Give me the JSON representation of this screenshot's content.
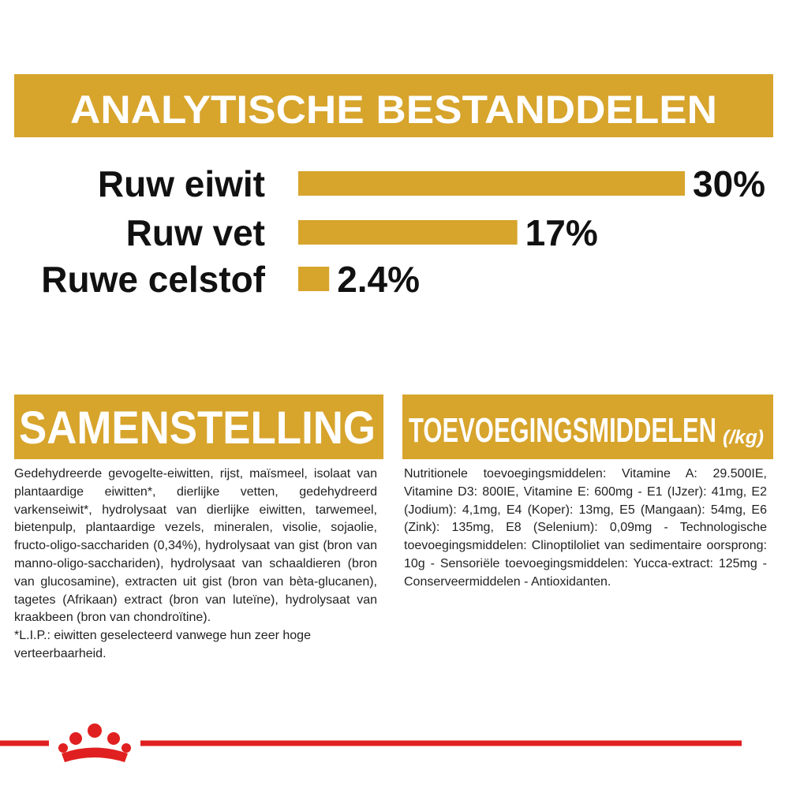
{
  "chart_data": {
    "type": "bar",
    "title": "ANALYTISCHE BESTANDDELEN",
    "categories": [
      "Ruw eiwit",
      "Ruw vet",
      "Ruwe celstof"
    ],
    "values": [
      30,
      17,
      2.4
    ],
    "value_labels": [
      "30%",
      "17%",
      "2.4%"
    ],
    "color": "#d7a42c"
  },
  "sections": [
    {
      "title": "SAMENSTELLING",
      "text": "Gedehydreerde gevogelte-eiwitten, rijst, maïsmeel, isolaat van plantaardige eiwitten*, dierlijke vetten, gedehydreerd varkenseiwit*, hydrolysaat van dierlijke eiwitten, tarwemeel, bietenpulp, plantaardige vezels, mineralen, visolie, sojaolie, fructo-oligo-sacchariden (0,34%), hydrolysaat van gist (bron van manno-oligo-sacchariden), hydrolysaat van schaaldieren (bron van glucosamine), extracten uit gist (bron van bèta-glucanen), tagetes (Afrikaan) extract (bron van luteïne), hydrolysaat van kraakbeen (bron van chondroïtine).",
      "footnote": "*L.I.P.: eiwitten geselecteerd vanwege hun zeer hoge verteerbaarheid."
    },
    {
      "title": "TOEVOEGINGSMIDDELEN",
      "title_suffix": "(/kg)",
      "text": "Nutritionele toevoegingsmiddelen: Vitamine A: 29.500IE, Vitamine D3: 800IE, Vitamine E: 600mg - E1 (IJzer): 41mg, E2 (Jodium): 4,1mg, E4 (Koper): 13mg, E5 (Mangaan): 54mg, E6 (Zink): 135mg, E8 (Selenium): 0,09mg - Technologische toevoegingsmiddelen: Clinoptiloliet van sedimentaire oorsprong: 10g - Sensoriële toevoegingsmiddelen: Yucca-extract: 125mg - Conserveermiddelen - Antioxidanten."
    }
  ]
}
